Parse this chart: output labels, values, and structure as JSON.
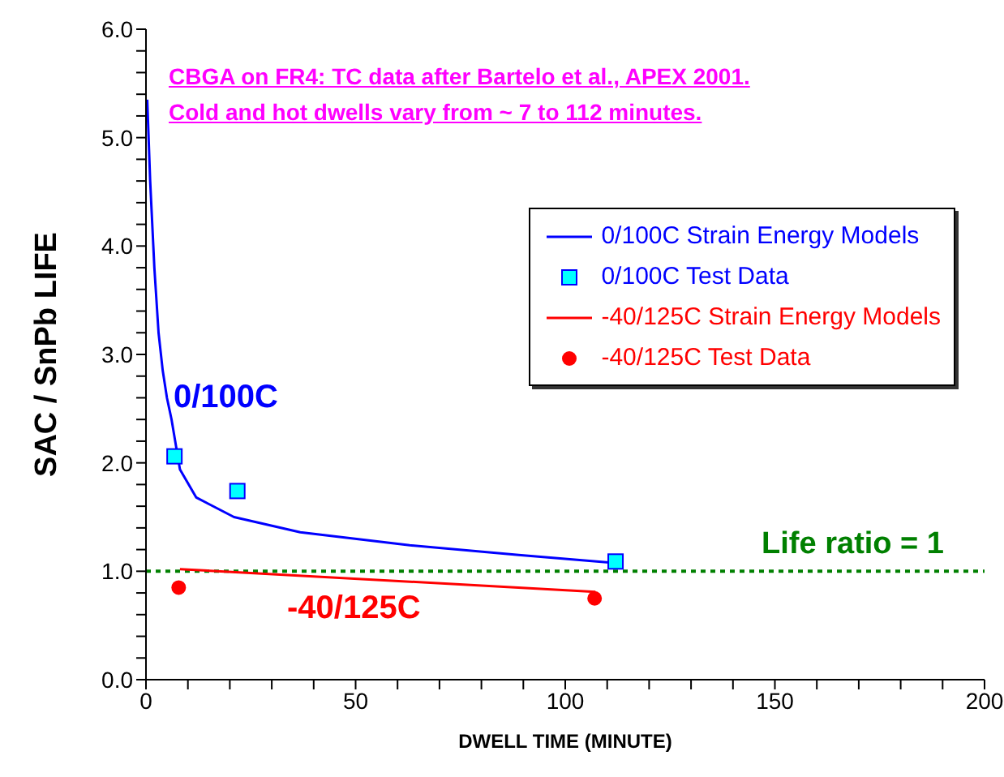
{
  "chart_data": {
    "type": "line",
    "xlabel": "DWELL TIME (MINUTE)",
    "ylabel": "SAC / SnPb LIFE",
    "xlim": [
      0,
      200
    ],
    "xticks": [
      0,
      {
        "value": 10,
        "label": null
      },
      {
        "value": 20,
        "label": null
      },
      {
        "value": 30,
        "label": null
      },
      {
        "value": 40,
        "label": null
      },
      50,
      {
        "value": 60,
        "label": null
      },
      {
        "value": 70,
        "label": null
      },
      {
        "value": 80,
        "label": null
      },
      {
        "value": 90,
        "label": null
      },
      100,
      {
        "value": 110,
        "label": null
      },
      {
        "value": 120,
        "label": null
      },
      {
        "value": 130,
        "label": null
      },
      {
        "value": 140,
        "label": null
      },
      150,
      {
        "value": 160,
        "label": null
      },
      {
        "value": 170,
        "label": null
      },
      {
        "value": 180,
        "label": null
      },
      {
        "value": 190,
        "label": null
      },
      200
    ],
    "ylim": [
      0,
      6
    ],
    "yticks": [
      {
        "value": 0,
        "label": "0.0"
      },
      {
        "value": 0.2,
        "label": null
      },
      {
        "value": 0.4,
        "label": null
      },
      {
        "value": 0.6,
        "label": null
      },
      {
        "value": 0.8,
        "label": null
      },
      {
        "value": 1,
        "label": "1.0"
      },
      {
        "value": 1.2,
        "label": null
      },
      {
        "value": 1.4,
        "label": null
      },
      {
        "value": 1.6,
        "label": null
      },
      {
        "value": 1.8,
        "label": null
      },
      {
        "value": 2,
        "label": "2.0"
      },
      {
        "value": 2.2,
        "label": null
      },
      {
        "value": 2.4,
        "label": null
      },
      {
        "value": 2.6,
        "label": null
      },
      {
        "value": 2.8,
        "label": null
      },
      {
        "value": 3,
        "label": "3.0"
      },
      {
        "value": 3.2,
        "label": null
      },
      {
        "value": 3.4,
        "label": null
      },
      {
        "value": 3.6,
        "label": null
      },
      {
        "value": 3.8,
        "label": null
      },
      {
        "value": 4,
        "label": "4.0"
      },
      {
        "value": 4.2,
        "label": null
      },
      {
        "value": 4.4,
        "label": null
      },
      {
        "value": 4.6,
        "label": null
      },
      {
        "value": 4.8,
        "label": null
      },
      {
        "value": 5,
        "label": "5.0"
      },
      {
        "value": 5.2,
        "label": null
      },
      {
        "value": 5.4,
        "label": null
      },
      {
        "value": 5.6,
        "label": null
      },
      {
        "value": 5.8,
        "label": null
      },
      {
        "value": 6,
        "label": "6.0"
      }
    ],
    "grid": false,
    "legend": "top right",
    "series": [
      {
        "name": "0/100C Strain Energy Models",
        "type": "line",
        "color": "#0000ff",
        "marker": "none",
        "line_style": "solid",
        "x": [
          0.3,
          1,
          2,
          3,
          4,
          5,
          6.1,
          8.1,
          12,
          21,
          36.8,
          62.9,
          88.9,
          111
        ],
        "values": [
          5.35,
          4.6,
          3.8,
          3.2,
          2.85,
          2.6,
          2.4,
          1.94,
          1.68,
          1.5,
          1.36,
          1.24,
          1.15,
          1.08
        ]
      },
      {
        "name": "0/100C Test Data",
        "type": "scatter",
        "color": "#00ffff",
        "marker": "square",
        "x": [
          6.8,
          21.8,
          112
        ],
        "values": [
          2.06,
          1.74,
          1.09
        ]
      },
      {
        "name": "-40/125C Strain Energy Models",
        "type": "line",
        "color": "#ff0000",
        "marker": "none",
        "line_style": "solid",
        "x": [
          8.1,
          107.2
        ],
        "values": [
          1.02,
          0.81
        ]
      },
      {
        "name": "-40/125C Test Data",
        "type": "scatter",
        "color": "#ff0000",
        "marker": "circle",
        "x": [
          7.8,
          107
        ],
        "values": [
          0.85,
          0.75
        ]
      }
    ],
    "ref_lines": [
      {
        "axis": "y",
        "value": 1,
        "label": "Life ratio = 1",
        "color": "#008000",
        "line_style": "dotted"
      }
    ],
    "annotations": [
      "CBGA on FR4: TC data after Bartelo et al., APEX 2001.",
      "Cold and hot dwells vary from ~ 7 to 112 minutes.",
      "0/100C",
      "-40/125C"
    ]
  }
}
